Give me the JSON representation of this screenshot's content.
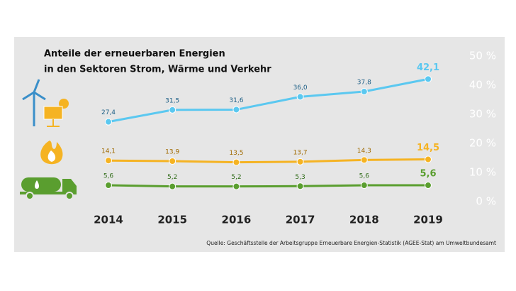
{
  "chart_data": {
    "type": "line",
    "title": "Anteile der erneuerbaren Energien",
    "subtitle": "in den Sektoren Strom, Wärme und Verkehr",
    "categories": [
      "2014",
      "2015",
      "2016",
      "2017",
      "2018",
      "2019"
    ],
    "series": [
      {
        "color": "#5bc8f0",
        "label_color": "#1d5f86",
        "values": [
          27.4,
          31.5,
          31.6,
          36.0,
          37.8,
          42.1
        ],
        "value_labels": [
          "27,4",
          "31,5",
          "31,6",
          "36,0",
          "37,8",
          "42,1"
        ]
      },
      {
        "color": "#f5b323",
        "label_color": "#a06a00",
        "values": [
          14.1,
          13.9,
          13.5,
          13.7,
          14.3,
          14.5
        ],
        "value_labels": [
          "14,1",
          "13,9",
          "13,5",
          "13,7",
          "14,3",
          "14,5"
        ]
      },
      {
        "color": "#5a9e2f",
        "label_color": "#2f6b17",
        "values": [
          5.6,
          5.2,
          5.2,
          5.3,
          5.6,
          5.6
        ],
        "value_labels": [
          "5,6",
          "5,2",
          "5,2",
          "5,3",
          "5,6",
          "5,6"
        ]
      }
    ],
    "ylim": [
      0,
      50
    ],
    "yticks": [
      {
        "value": 0,
        "label": "0 %"
      },
      {
        "value": 10,
        "label": "10 %"
      },
      {
        "value": 20,
        "label": "20 %"
      },
      {
        "value": 30,
        "label": "30 %"
      },
      {
        "value": 40,
        "label": "40 %"
      },
      {
        "value": 50,
        "label": "50 %"
      }
    ],
    "source": "Quelle: Geschäftsstelle der Arbeitsgruppe Erneuerbare Energien-Statistik (AGEE-Stat) am Umweltbundesamt"
  }
}
